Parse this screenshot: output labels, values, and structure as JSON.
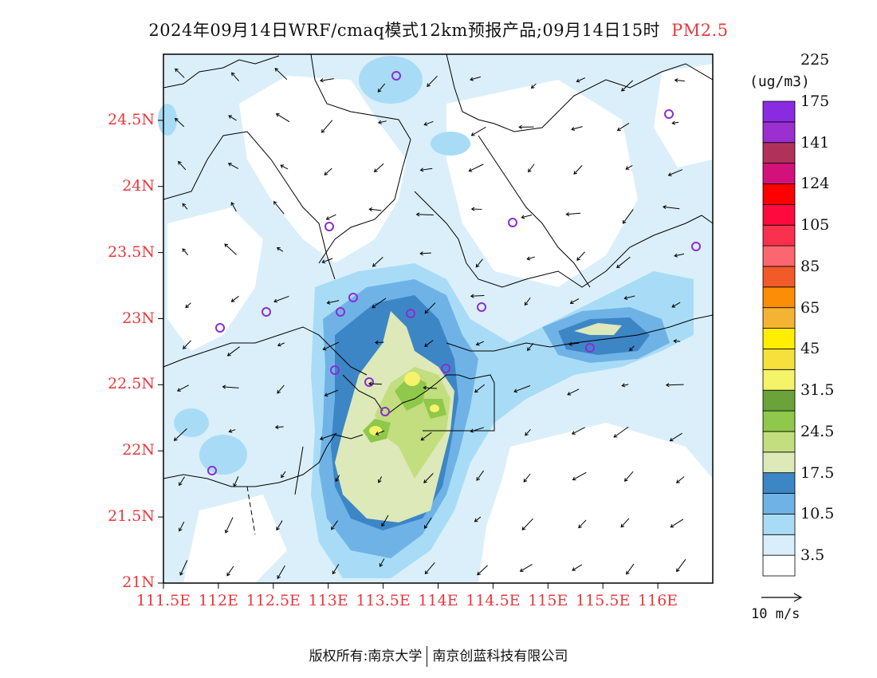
{
  "title": {
    "main": "2024年09月14日WRF/cmaq模式12km预报产品;09月14日15时",
    "variable": "PM2.5"
  },
  "axes": {
    "lat_labels": [
      "21N",
      "21.5N",
      "22N",
      "22.5N",
      "23N",
      "23.5N",
      "24N",
      "24.5N"
    ],
    "lat_values": [
      21,
      21.5,
      22,
      22.5,
      23,
      23.5,
      24,
      24.5
    ],
    "lon_labels": [
      "111.5E",
      "112E",
      "112.5E",
      "113E",
      "113.5E",
      "114E",
      "114.5E",
      "115E",
      "115.5E",
      "116E"
    ],
    "lon_values": [
      111.5,
      112,
      112.5,
      113,
      113.5,
      114,
      114.5,
      115,
      115.5,
      116
    ],
    "lon_range": [
      111.5,
      116.5
    ],
    "lat_range": [
      21,
      25
    ]
  },
  "colorbar": {
    "unit": "(ug/m3)",
    "labels": [
      "3.5",
      "10.5",
      "17.5",
      "24.5",
      "31.5",
      "45",
      "65",
      "85",
      "105",
      "124",
      "141",
      "175",
      "225"
    ],
    "colors": [
      "#ffffff",
      "#d8eefa",
      "#a8dcf6",
      "#6fb3e6",
      "#3d86c6",
      "#dde9b8",
      "#c2de7e",
      "#8fc84a",
      "#6ba23a",
      "#f4f36a",
      "#f6e03c",
      "#ffee00",
      "#f5b333",
      "#fb8e06",
      "#f15a29",
      "#fb6670",
      "#f9304e",
      "#ff0a3f",
      "#ff0000",
      "#d4117b",
      "#b0325a",
      "#9b2fd0",
      "#8a2be2"
    ],
    "levels_note": ""
  },
  "wind_reference": {
    "label": "10 m/s"
  },
  "stations_color": "#8e2bd6",
  "footer": {
    "left": "版权所有:南京大学",
    "right": "南京创蓝科技有限公司"
  }
}
